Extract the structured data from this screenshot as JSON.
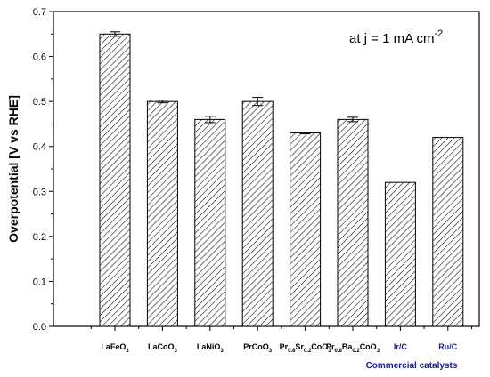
{
  "chart_data": {
    "type": "bar",
    "ylabel": "Overpotential [V vs RHE]",
    "xlabel": "",
    "ylim": [
      0.0,
      0.7
    ],
    "yticks": [
      0.0,
      0.1,
      0.2,
      0.3,
      0.4,
      0.5,
      0.6,
      0.7
    ],
    "ytick_labels": [
      "0.0",
      "0.1",
      "0.2",
      "0.3",
      "0.4",
      "0.5",
      "0.6",
      "0.7"
    ],
    "bar_fill": "diagonal-hatch",
    "annotation": {
      "text": "at j = 1 mA cm",
      "sup": "-2",
      "position": "top-right"
    },
    "categories": [
      {
        "parts": [
          {
            "t": "LaFeO"
          },
          {
            "t": "3",
            "s": "sub"
          }
        ],
        "color": "#000000"
      },
      {
        "parts": [
          {
            "t": "LaCoO"
          },
          {
            "t": "3",
            "s": "sub"
          }
        ],
        "color": "#000000"
      },
      {
        "parts": [
          {
            "t": "LaNiO"
          },
          {
            "t": "3",
            "s": "sub"
          }
        ],
        "color": "#000000"
      },
      {
        "parts": [
          {
            "t": "PrCoO"
          },
          {
            "t": "3",
            "s": "sub"
          }
        ],
        "color": "#000000"
      },
      {
        "parts": [
          {
            "t": "Pr"
          },
          {
            "t": "0.8",
            "s": "sub"
          },
          {
            "t": "Sr"
          },
          {
            "t": "0.2",
            "s": "sub"
          },
          {
            "t": "CoO"
          },
          {
            "t": "3",
            "s": "sub"
          }
        ],
        "color": "#000000"
      },
      {
        "parts": [
          {
            "t": "Pr"
          },
          {
            "t": "0.8",
            "s": "sub"
          },
          {
            "t": "Ba"
          },
          {
            "t": "0.2",
            "s": "sub"
          },
          {
            "t": "CoO"
          },
          {
            "t": "3",
            "s": "sub"
          }
        ],
        "color": "#000000"
      },
      {
        "parts": [
          {
            "t": "Ir/C"
          }
        ],
        "color": "#1a1aa6"
      },
      {
        "parts": [
          {
            "t": "Ru/C"
          }
        ],
        "color": "#1a1aa6"
      }
    ],
    "values": [
      0.65,
      0.5,
      0.46,
      0.5,
      0.43,
      0.46,
      0.32,
      0.42
    ],
    "errors": [
      0.005,
      0.003,
      0.007,
      0.009,
      0.002,
      0.005,
      0,
      0
    ],
    "group_label": "Commercial catalysts",
    "group_color": "#1a1aa6"
  }
}
